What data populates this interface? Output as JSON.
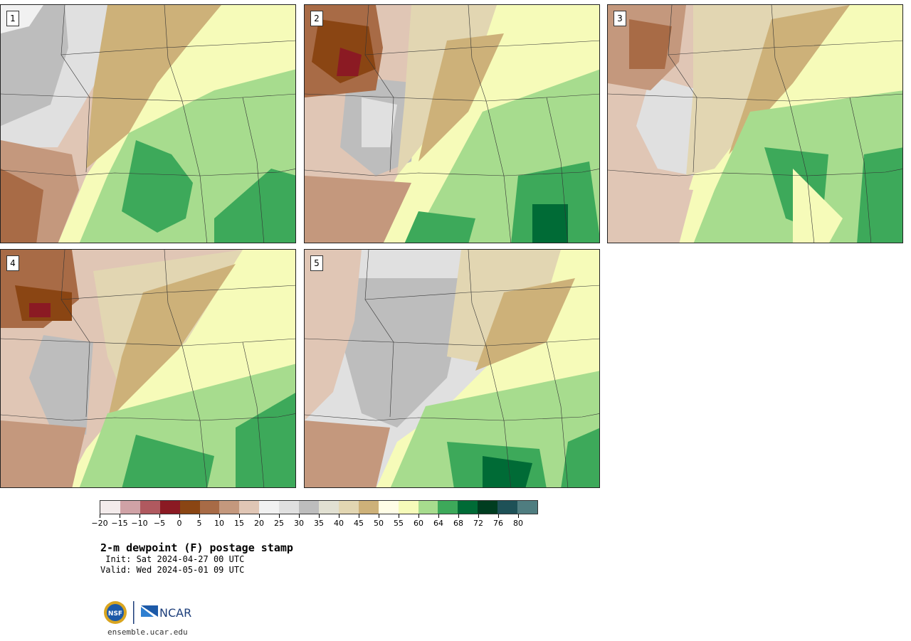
{
  "panels": [
    {
      "id": "1",
      "label": "1"
    },
    {
      "id": "2",
      "label": "2"
    },
    {
      "id": "3",
      "label": "3"
    },
    {
      "id": "4",
      "label": "4"
    },
    {
      "id": "5",
      "label": "5"
    }
  ],
  "colorbar": {
    "colors": [
      "#f3ebeb",
      "#d0a2a6",
      "#b0595f",
      "#8b1a23",
      "#8a4513",
      "#a86b46",
      "#c4987d",
      "#e0c6b5",
      "#f1f1f1",
      "#e0e0e0",
      "#bdbdbd",
      "#e1e0d2",
      "#e2d6b2",
      "#cdb179",
      "#fffde6",
      "#f6fbb9",
      "#a7dc8e",
      "#3da95a",
      "#006b36",
      "#003d20",
      "#1e5157",
      "#4f7d80"
    ],
    "tick_labels": [
      "−20",
      "−15",
      "−10",
      "−5",
      "0",
      "5",
      "10",
      "15",
      "20",
      "25",
      "30",
      "35",
      "40",
      "45",
      "50",
      "55",
      "60",
      "64",
      "68",
      "72",
      "76",
      "80"
    ]
  },
  "title": "2-m dewpoint (F) postage stamp",
  "init": " Init: Sat 2024-04-27 00 UTC",
  "valid": "Valid: Wed 2024-05-01 09 UTC",
  "logos": {
    "nsf": "NSF",
    "ncar": "NCAR"
  },
  "url": "ensemble.ucar.edu"
}
